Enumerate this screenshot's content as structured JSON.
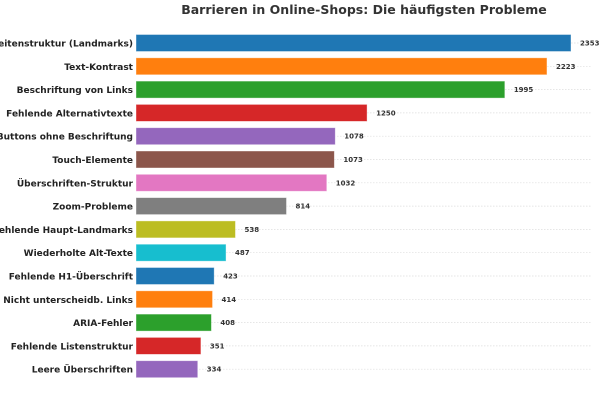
{
  "chart_data": {
    "type": "bar",
    "orientation": "horizontal",
    "title": "Barrieren in Online-Shops: Die häufigsten Probleme",
    "xlabel": "",
    "ylabel": "",
    "xlim": [
      0,
      2353
    ],
    "grid": "horizontal dotted",
    "categories": [
      "Seitenstruktur (Landmarks)",
      "Text-Kontrast",
      "Beschriftung von Links",
      "Fehlende Alternativtexte",
      "Buttons ohne Beschriftung",
      "Touch-Elemente",
      "Überschriften-Struktur",
      "Zoom-Probleme",
      "Fehlende Haupt-Landmarks",
      "Wiederholte Alt-Texte",
      "Fehlende H1-Überschrift",
      "Nicht unterscheidb. Links",
      "ARIA-Fehler",
      "Fehlende Listenstruktur",
      "Leere Überschriften"
    ],
    "values": [
      2353,
      2223,
      1995,
      1250,
      1078,
      1073,
      1032,
      814,
      538,
      487,
      423,
      414,
      408,
      351,
      334
    ],
    "colors": [
      "#1f77b4",
      "#ff7f0e",
      "#2ca02c",
      "#d62728",
      "#9467bd",
      "#8c564b",
      "#e377c2",
      "#7f7f7f",
      "#bcbd22",
      "#17becf",
      "#1f77b4",
      "#ff7f0e",
      "#2ca02c",
      "#d62728",
      "#9467bd"
    ]
  }
}
